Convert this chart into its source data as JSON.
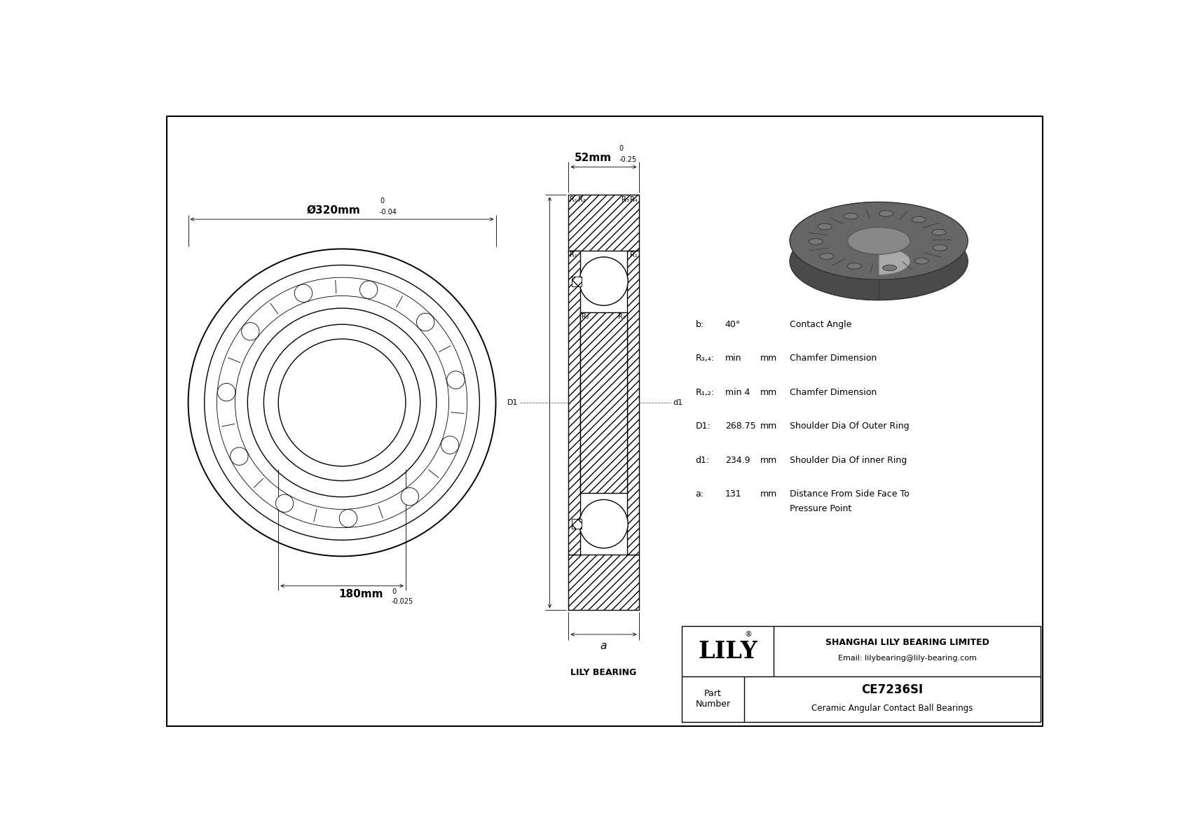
{
  "bg_color": "#ffffff",
  "line_color": "#000000",
  "company": "SHANGHAI LILY BEARING LIMITED",
  "email": "Email: lilybearing@lily-bearing.com",
  "part_number_label": "Part\nNumber",
  "part_number": "CE7236SI",
  "part_type": "Ceramic Angular Contact Ball Bearings",
  "dim_outer": "Ø320mm",
  "dim_outer_tol_top": "0",
  "dim_outer_tol_bot": "-0.04",
  "dim_inner": "180mm",
  "dim_inner_tol_top": "0",
  "dim_inner_tol_bot": "-0.025",
  "dim_width": "52mm",
  "dim_width_tol_top": "0",
  "dim_width_tol_bot": "-0.25",
  "specs": [
    {
      "label": "b:",
      "value": "40°",
      "unit": "",
      "desc": "Contact Angle"
    },
    {
      "label": "R₃,₄:",
      "value": "min",
      "unit": "mm",
      "desc": "Chamfer Dimension"
    },
    {
      "label": "R₁,₂:",
      "value": "min 4",
      "unit": "mm",
      "desc": "Chamfer Dimension"
    },
    {
      "label": "D1:",
      "value": "268.75",
      "unit": "mm",
      "desc": "Shoulder Dia Of Outer Ring"
    },
    {
      "label": "d1:",
      "value": "234.9",
      "unit": "mm",
      "desc": "Shoulder Dia Of inner Ring"
    },
    {
      "label": "a:",
      "value": "131",
      "unit": "mm",
      "desc": "Distance From Side Face To\nPressure Point"
    }
  ]
}
